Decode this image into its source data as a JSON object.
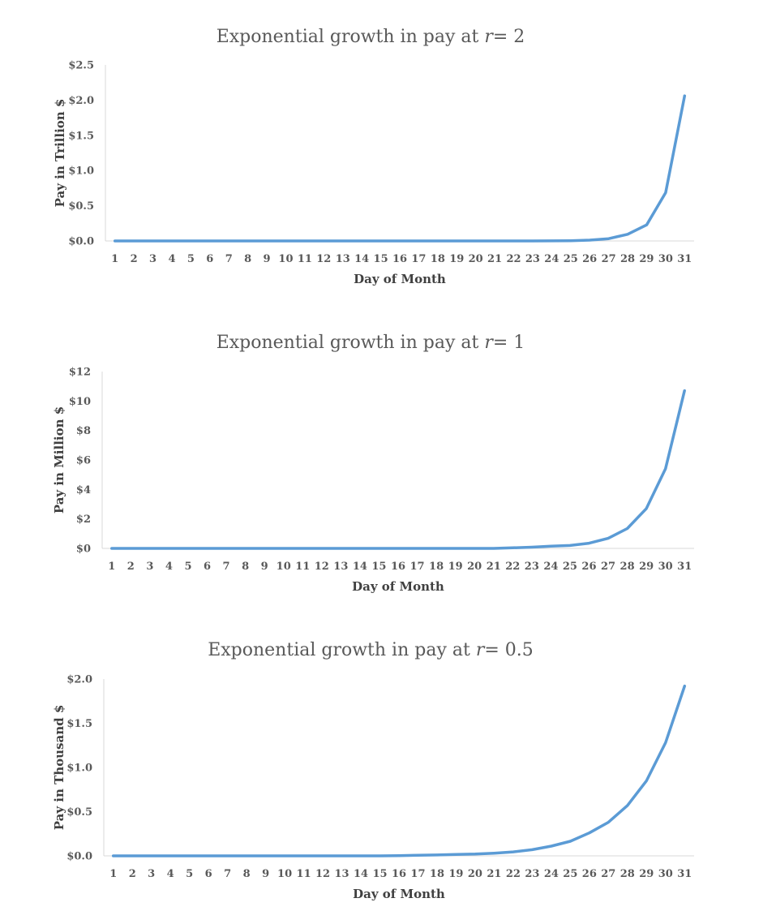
{
  "colors": {
    "series": "#5b9bd5",
    "axis": "#d9d9d9",
    "text": "#595959"
  },
  "chart_data": [
    {
      "type": "line",
      "title_prefix": "Exponential growth in pay at ",
      "title_var": "r",
      "title_suffix": "= 2",
      "xlabel": "Day of Month",
      "ylabel": "Pay in Trillion $",
      "ylim": [
        0,
        2.5
      ],
      "yticks": [
        "$0.0",
        "$0.5",
        "$1.0",
        "$1.5",
        "$2.0",
        "$2.5"
      ],
      "categories": [
        "1",
        "2",
        "3",
        "4",
        "5",
        "6",
        "7",
        "8",
        "9",
        "10",
        "11",
        "12",
        "13",
        "14",
        "15",
        "16",
        "17",
        "18",
        "19",
        "20",
        "21",
        "22",
        "23",
        "24",
        "25",
        "26",
        "27",
        "28",
        "29",
        "30",
        "31"
      ],
      "series": [
        {
          "name": "Pay",
          "values": [
            0,
            0,
            0,
            0,
            0,
            0,
            0,
            0,
            0,
            0,
            0,
            0,
            0,
            0,
            0,
            0,
            0,
            0,
            0,
            0,
            0,
            0,
            0.0005,
            0.001,
            0.004,
            0.011,
            0.032,
            0.095,
            0.228,
            0.686,
            2.06
          ]
        }
      ]
    },
    {
      "type": "line",
      "title_prefix": "Exponential growth in pay at ",
      "title_var": "r",
      "title_suffix": "= 1",
      "xlabel": "Day of Month",
      "ylabel": "Pay in Million $",
      "ylim": [
        0,
        12
      ],
      "yticks": [
        "$0",
        "$2",
        "$4",
        "$6",
        "$8",
        "$10",
        "$12"
      ],
      "categories": [
        "1",
        "2",
        "3",
        "4",
        "5",
        "6",
        "7",
        "8",
        "9",
        "10",
        "11",
        "12",
        "13",
        "14",
        "15",
        "16",
        "17",
        "18",
        "19",
        "20",
        "21",
        "22",
        "23",
        "24",
        "25",
        "26",
        "27",
        "28",
        "29",
        "30",
        "31"
      ],
      "series": [
        {
          "name": "Pay",
          "values": [
            0,
            0,
            0,
            0,
            0,
            0,
            0,
            0,
            0,
            0,
            0,
            0,
            0,
            0,
            0,
            0,
            0,
            0,
            0,
            0,
            0,
            0.04,
            0.08,
            0.15,
            0.2,
            0.35,
            0.68,
            1.35,
            2.7,
            5.4,
            10.7
          ]
        }
      ]
    },
    {
      "type": "line",
      "title_prefix": "Exponential growth in pay at ",
      "title_var": "r",
      "title_suffix": "= 0.5",
      "xlabel": "Day of Month",
      "ylabel": "Pay in Thousand $",
      "ylim": [
        0,
        2.0
      ],
      "yticks": [
        "$0.0",
        "$0.5",
        "$1.0",
        "$1.5",
        "$2.0"
      ],
      "categories": [
        "1",
        "2",
        "3",
        "4",
        "5",
        "6",
        "7",
        "8",
        "9",
        "10",
        "11",
        "12",
        "13",
        "14",
        "15",
        "16",
        "17",
        "18",
        "19",
        "20",
        "21",
        "22",
        "23",
        "24",
        "25",
        "26",
        "27",
        "28",
        "29",
        "30",
        "31"
      ],
      "series": [
        {
          "name": "Pay",
          "values": [
            0,
            0,
            0,
            0,
            0,
            0,
            0,
            0,
            0,
            0,
            0,
            0,
            0,
            0,
            0,
            0.002,
            0.007,
            0.01,
            0.016,
            0.02,
            0.03,
            0.045,
            0.07,
            0.11,
            0.165,
            0.26,
            0.38,
            0.57,
            0.85,
            1.28,
            1.92
          ]
        }
      ]
    }
  ]
}
